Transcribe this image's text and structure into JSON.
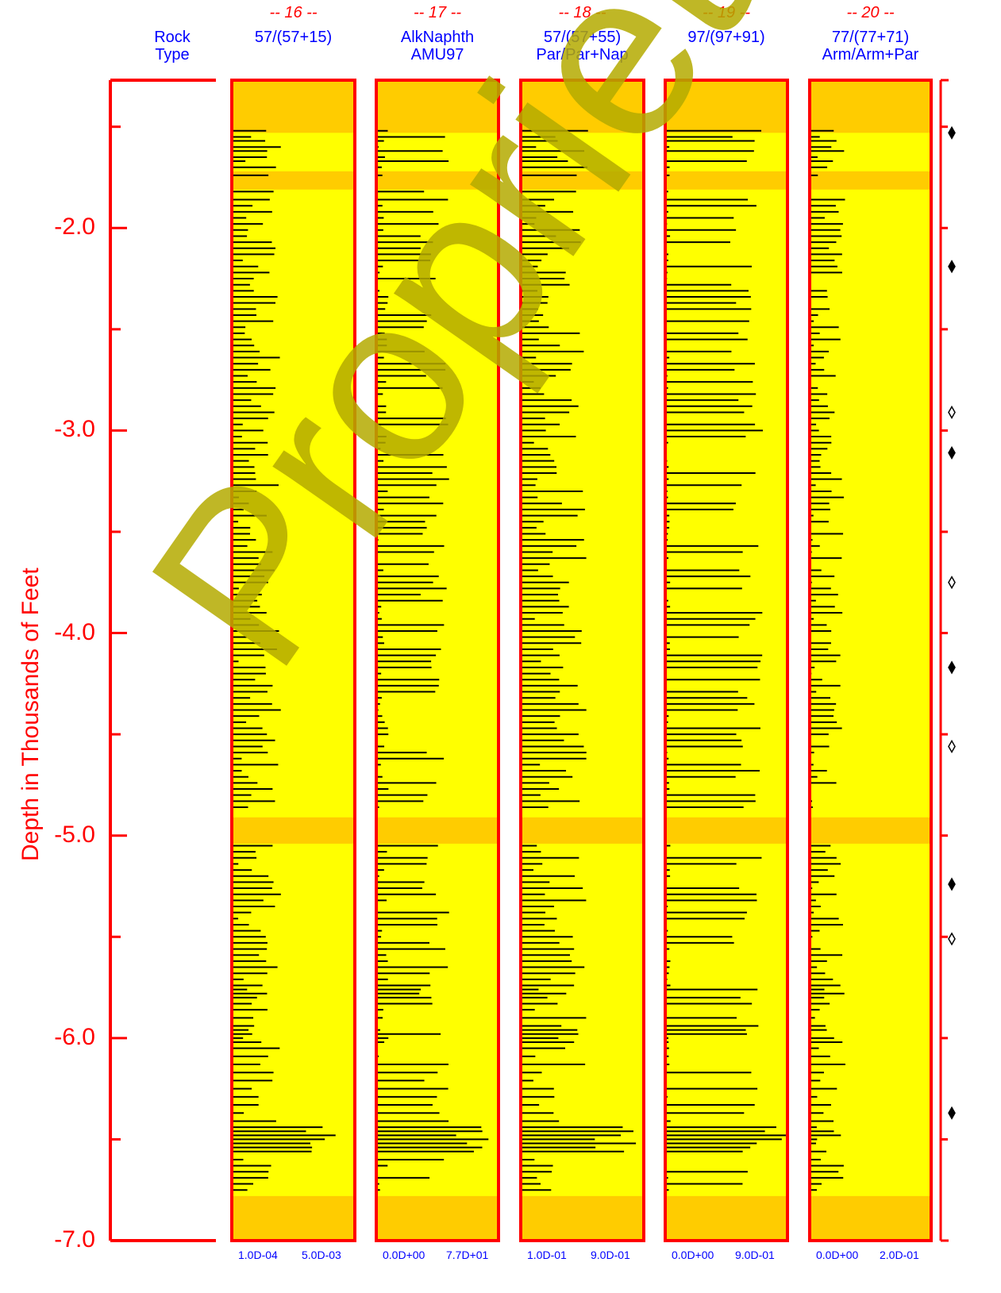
{
  "chart_data": {
    "type": "bar",
    "orientation": "horizontal",
    "ylabel": "Depth in Thousands of Feet",
    "yticks": [
      "-2.0",
      "-3.0",
      "-4.0",
      "-5.0",
      "-6.0",
      "-7.0"
    ],
    "ylim": [
      -1.27,
      -7.0
    ],
    "rock_type_header": [
      "Rock",
      "Type"
    ],
    "tracks": [
      {
        "number": "-- 16 --",
        "label1": "57/(57+15)",
        "label2": "",
        "scale_min": "1.0D-04",
        "scale_max": "5.0D-03"
      },
      {
        "number": "-- 17 --",
        "label1": "AlkNaphth",
        "label2": "AMU97",
        "scale_min": "0.0D+00",
        "scale_max": "7.7D+01"
      },
      {
        "number": "-- 18 --",
        "label1": "57/(57+55)",
        "label2": "Par/Par+Nap",
        "scale_min": "1.0D-01",
        "scale_max": "9.0D-01"
      },
      {
        "number": "-- 19 --",
        "label1": "97/(97+91)",
        "label2": "",
        "scale_min": "0.0D+00",
        "scale_max": "9.0D-01"
      },
      {
        "number": "-- 20 --",
        "label1": "77/(77+71)",
        "label2": "Arm/Arm+Par",
        "scale_min": "0.0D+00",
        "scale_max": "2.0D-01"
      }
    ],
    "orange_bands": [
      [
        -1.27,
        -1.53
      ],
      [
        -1.72,
        -1.81
      ],
      [
        -4.91,
        -5.04
      ],
      [
        -6.78,
        -7.0
      ]
    ],
    "diamonds": [
      {
        "depth": -1.53,
        "filled": true
      },
      {
        "depth": -2.19,
        "filled": true
      },
      {
        "depth": -2.91,
        "filled": false
      },
      {
        "depth": -3.11,
        "filled": true
      },
      {
        "depth": -3.75,
        "filled": false
      },
      {
        "depth": -4.17,
        "filled": true
      },
      {
        "depth": -4.56,
        "filled": false
      },
      {
        "depth": -5.24,
        "filled": true
      },
      {
        "depth": -5.51,
        "filled": false
      },
      {
        "depth": -6.37,
        "filled": true
      }
    ],
    "watermark": "Proprietary",
    "colors": {
      "axis": "#ff0000",
      "track_fill": "#ffff00",
      "band_fill": "#ffcc00",
      "bar": "#000000",
      "label": "#0000ff"
    },
    "sample_depths": [
      -1.52,
      -1.55,
      -1.57,
      -1.6,
      -1.62,
      -1.65,
      -1.67,
      -1.7,
      -1.74,
      -1.82,
      -1.86,
      -1.89,
      -1.92,
      -1.95,
      -1.98,
      -2.01,
      -2.04,
      -2.07,
      -2.1,
      -2.13,
      -2.16,
      -2.19,
      -2.22,
      -2.25,
      -2.28,
      -2.31,
      -2.34,
      -2.37,
      -2.4,
      -2.43,
      -2.46,
      -2.49,
      -2.52,
      -2.55,
      -2.58,
      -2.61,
      -2.64,
      -2.67,
      -2.7,
      -2.73,
      -2.76,
      -2.79,
      -2.82,
      -2.85,
      -2.88,
      -2.91,
      -2.94,
      -2.97,
      -3.0,
      -3.03,
      -3.06,
      -3.09,
      -3.12,
      -3.15,
      -3.18,
      -3.21,
      -3.24,
      -3.27,
      -3.3,
      -3.33,
      -3.36,
      -3.39,
      -3.42,
      -3.45,
      -3.48,
      -3.51,
      -3.54,
      -3.57,
      -3.6,
      -3.63,
      -3.66,
      -3.69,
      -3.72,
      -3.75,
      -3.78,
      -3.81,
      -3.84,
      -3.87,
      -3.9,
      -3.93,
      -3.96,
      -3.99,
      -4.02,
      -4.05,
      -4.08,
      -4.11,
      -4.14,
      -4.17,
      -4.2,
      -4.23,
      -4.26,
      -4.29,
      -4.32,
      -4.35,
      -4.38,
      -4.41,
      -4.44,
      -4.47,
      -4.5,
      -4.53,
      -4.56,
      -4.59,
      -4.62,
      -4.65,
      -4.68,
      -4.71,
      -4.74,
      -4.77,
      -4.8,
      -4.83,
      -4.86,
      -5.05,
      -5.08,
      -5.11,
      -5.14,
      -5.17,
      -5.2,
      -5.23,
      -5.26,
      -5.29,
      -5.32,
      -5.35,
      -5.38,
      -5.41,
      -5.44,
      -5.47,
      -5.5,
      -5.53,
      -5.56,
      -5.59,
      -5.62,
      -5.65,
      -5.68,
      -5.71,
      -5.74,
      -5.76,
      -5.78,
      -5.8,
      -5.83,
      -5.86,
      -5.9,
      -5.94,
      -5.96,
      -5.98,
      -6.0,
      -6.02,
      -6.05,
      -6.09,
      -6.13,
      -6.17,
      -6.21,
      -6.25,
      -6.29,
      -6.33,
      -6.37,
      -6.41,
      -6.44,
      -6.46,
      -6.48,
      -6.5,
      -6.52,
      -6.54,
      -6.56,
      -6.6,
      -6.63,
      -6.66,
      -6.69,
      -6.72,
      -6.75
    ]
  }
}
